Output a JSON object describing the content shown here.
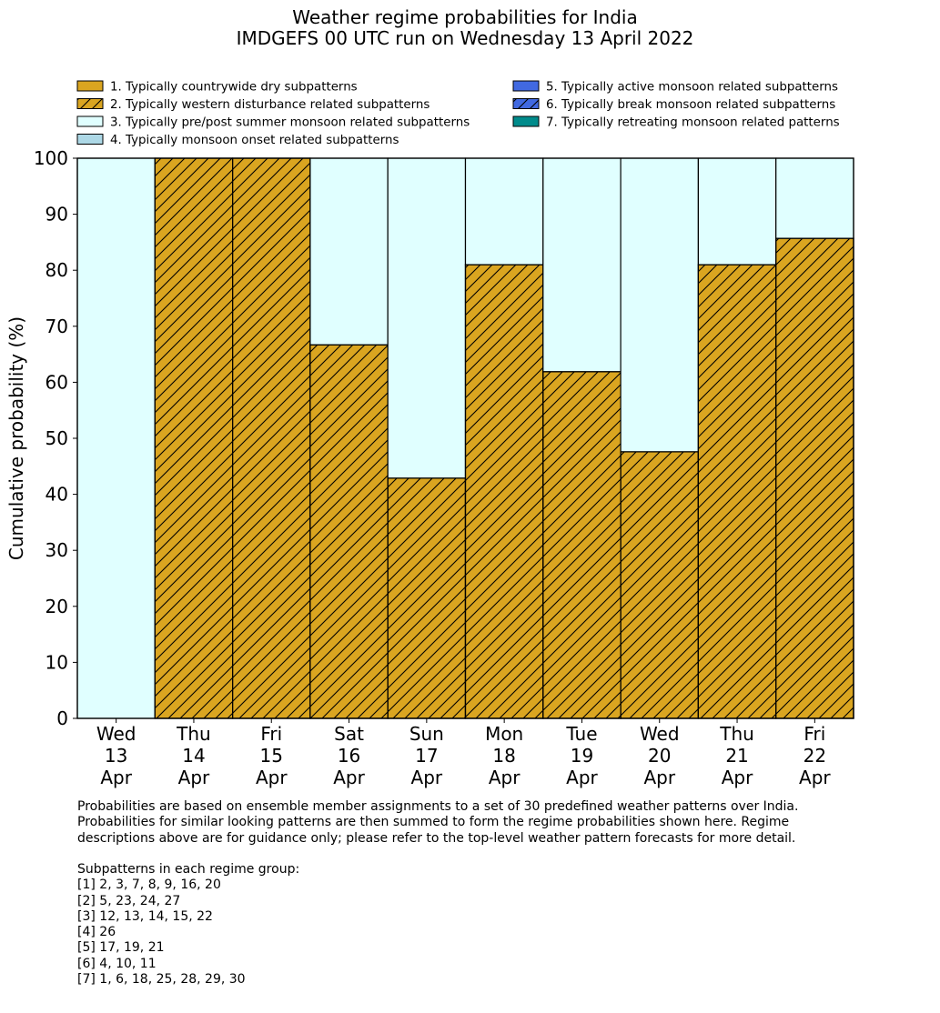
{
  "chart_data": {
    "type": "bar",
    "stacked": true,
    "title": "Weather regime probabilities for India",
    "subtitle": "IMDGEFS 00 UTC run on Wednesday 13 April 2022",
    "ylabel": "Cumulative probability (%)",
    "ylim": [
      0,
      100
    ],
    "yticks": [
      "0",
      "10",
      "20",
      "30",
      "40",
      "50",
      "60",
      "70",
      "80",
      "90",
      "100"
    ],
    "categories": [
      [
        "Wed",
        "13",
        "Apr"
      ],
      [
        "Thu",
        "14",
        "Apr"
      ],
      [
        "Fri",
        "15",
        "Apr"
      ],
      [
        "Sat",
        "16",
        "Apr"
      ],
      [
        "Sun",
        "17",
        "Apr"
      ],
      [
        "Mon",
        "18",
        "Apr"
      ],
      [
        "Tue",
        "19",
        "Apr"
      ],
      [
        "Wed",
        "20",
        "Apr"
      ],
      [
        "Thu",
        "21",
        "Apr"
      ],
      [
        "Fri",
        "22",
        "Apr"
      ]
    ],
    "legend_position": "top",
    "series": [
      {
        "name": "1. Typically countrywide dry subpatterns",
        "color": "#daa520",
        "hatch": false,
        "values": [
          0,
          0,
          0,
          0,
          0,
          0,
          0,
          0,
          0,
          0
        ]
      },
      {
        "name": "2. Typically western disturbance related subpatterns",
        "color": "#daa520",
        "hatch": true,
        "values": [
          0,
          100,
          100,
          66.7,
          42.9,
          81.0,
          61.9,
          47.6,
          81.0,
          85.7
        ]
      },
      {
        "name": "3. Typically pre/post summer monsoon related subpatterns",
        "color": "#e0ffff",
        "hatch": false,
        "values": [
          100,
          0,
          0,
          33.3,
          57.1,
          19.0,
          38.1,
          52.4,
          19.0,
          14.3
        ]
      },
      {
        "name": "4. Typically monsoon onset related subpatterns",
        "color": "#add8e6",
        "hatch": false,
        "values": [
          0,
          0,
          0,
          0,
          0,
          0,
          0,
          0,
          0,
          0
        ]
      },
      {
        "name": "5. Typically active monsoon related subpatterns",
        "color": "#4169e1",
        "hatch": false,
        "values": [
          0,
          0,
          0,
          0,
          0,
          0,
          0,
          0,
          0,
          0
        ]
      },
      {
        "name": "6. Typically break monsoon related subpatterns",
        "color": "#4169e1",
        "hatch": true,
        "values": [
          0,
          0,
          0,
          0,
          0,
          0,
          0,
          0,
          0,
          0
        ]
      },
      {
        "name": "7. Typically retreating monsoon related patterns",
        "color": "#008b8b",
        "hatch": false,
        "values": [
          0,
          0,
          0,
          0,
          0,
          0,
          0,
          0,
          0,
          0
        ]
      }
    ]
  },
  "notes": {
    "description": "Probabilities are based on ensemble member assignments to a set of 30 predefined weather patterns over India.\nProbabilities for similar looking patterns are then summed to form the regime probabilities shown here. Regime\ndescriptions above are for guidance only; please refer to the top-level weather pattern forecasts for more detail.",
    "groups": "Subpatterns in each regime group:\n[1] 2, 3, 7, 8, 9, 16, 20\n[2] 5, 23, 24, 27\n[3] 12, 13, 14, 15, 22\n[4] 26\n[5] 17, 19, 21\n[6] 4, 10, 11\n[7] 1, 6, 18, 25, 28, 29, 30"
  }
}
